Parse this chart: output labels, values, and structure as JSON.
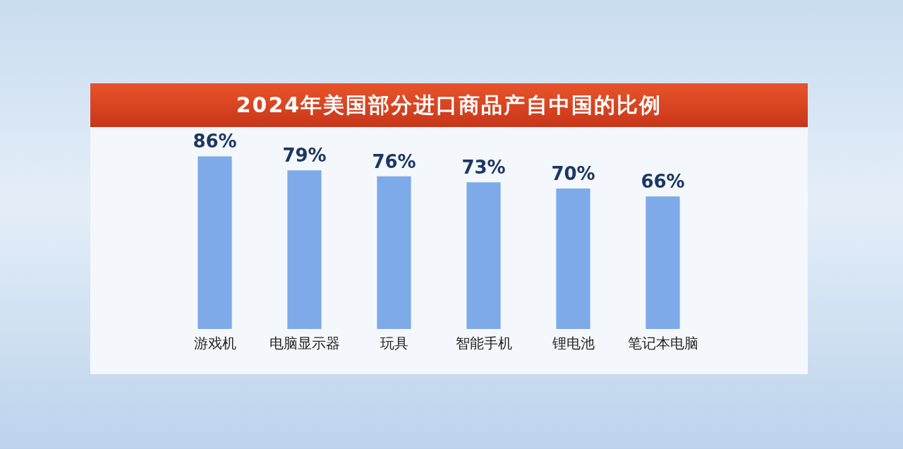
{
  "chart_data": {
    "type": "bar",
    "title": "2024年美国部分进口商品产自中国的比例",
    "categories": [
      "游戏机",
      "电脑显示器",
      "玩具",
      "智能手机",
      "锂电池",
      "笔记本电脑"
    ],
    "values": [
      86,
      79,
      76,
      73,
      70,
      66
    ],
    "value_labels": [
      "86%",
      "79%",
      "76%",
      "73%",
      "70%",
      "66%"
    ],
    "color": "#7eaaea",
    "grid": false,
    "legend": false,
    "tick_labels": "x"
  }
}
